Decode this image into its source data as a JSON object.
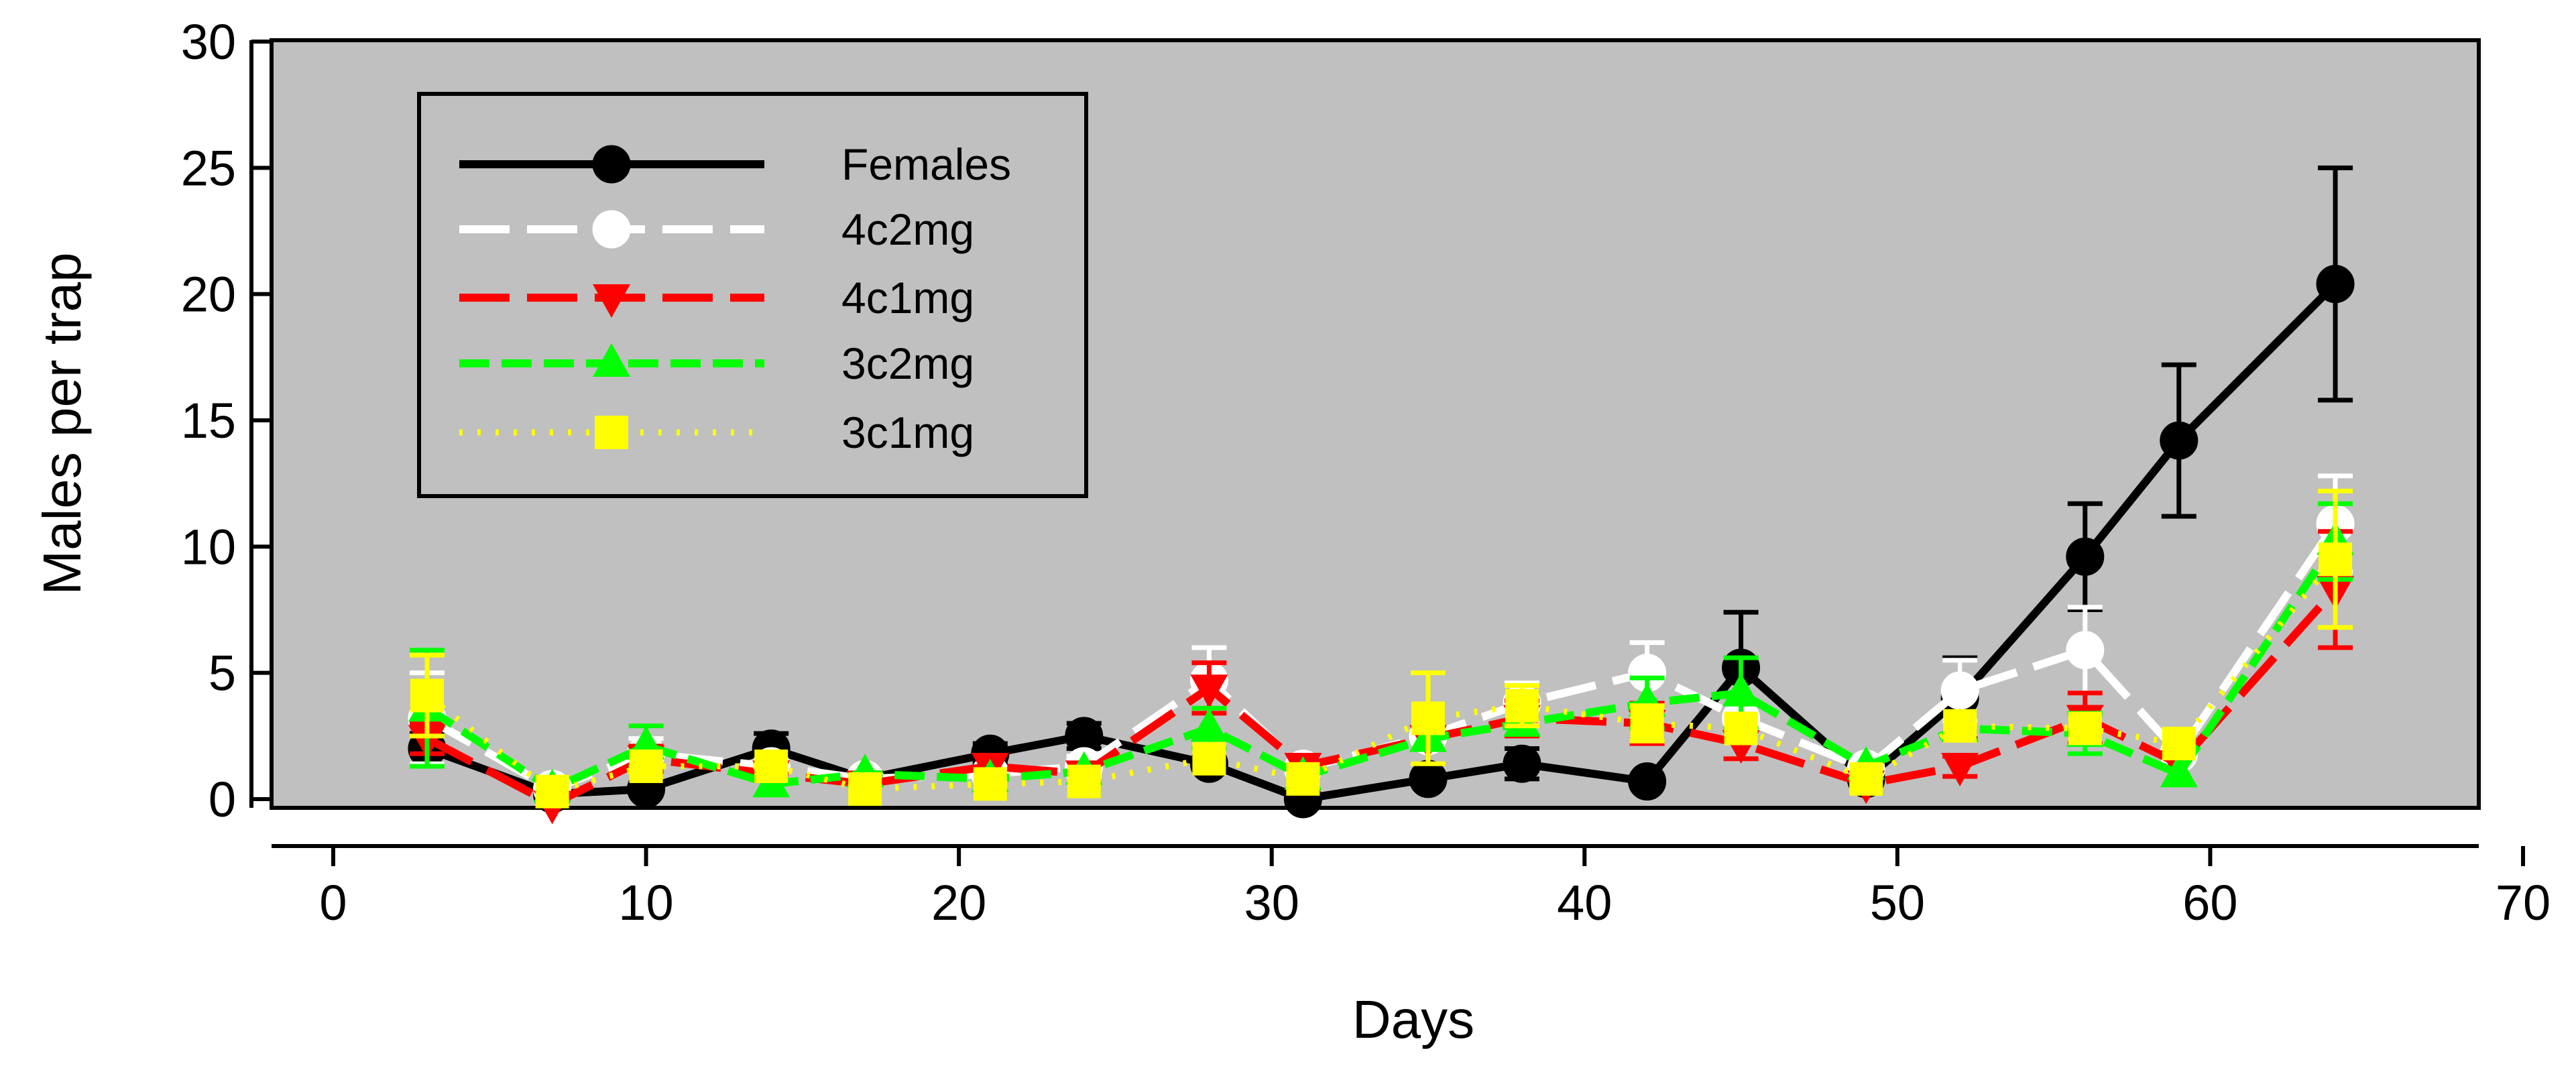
{
  "colors": {
    "plot_background": "#c0c0c0",
    "females": "#000000",
    "4c2mg": "#ffffff",
    "4c1mg": "#ff0000",
    "3c2mg": "#00ff00",
    "3c1mg": "#ffff00"
  },
  "chart_data": {
    "type": "line",
    "title": "",
    "xlabel": "Days",
    "ylabel": "Males per trap",
    "xlim": [
      0,
      70
    ],
    "ylim": [
      0,
      30
    ],
    "xticks": [
      "0",
      "10",
      "20",
      "30",
      "40",
      "50",
      "60",
      "70"
    ],
    "yticks": [
      "0",
      "5",
      "10",
      "15",
      "20",
      "25",
      "30"
    ],
    "legend_position": "top-left",
    "series": [
      {
        "name": "Females",
        "key": "females",
        "marker": "circle",
        "line": "solid",
        "x": [
          3,
          7,
          10,
          14,
          17,
          21,
          24,
          28,
          31,
          35,
          38,
          42,
          45,
          49,
          52,
          56,
          59,
          64
        ],
        "y": [
          2,
          0.2,
          0.4,
          2,
          0.8,
          1.8,
          2.5,
          1.4,
          0,
          0.8,
          1.4,
          0.7,
          5.2,
          0.8,
          4,
          9.6,
          14.2,
          20.4
        ],
        "err": [
          0.6,
          0,
          0,
          0.6,
          0,
          0.4,
          0.5,
          0,
          0,
          0,
          0.6,
          0,
          2.2,
          0,
          1.6,
          2.1,
          3,
          4.6
        ]
      },
      {
        "name": "4c2mg",
        "key": "4c2mg",
        "marker": "circle-open",
        "line": "dashed",
        "x": [
          3,
          7,
          10,
          14,
          17,
          21,
          24,
          28,
          31,
          35,
          38,
          42,
          45,
          49,
          52,
          56,
          59,
          64
        ],
        "y": [
          3.2,
          0.4,
          1.8,
          1.3,
          0.8,
          1,
          1.3,
          4.7,
          1.2,
          2.5,
          3.8,
          5,
          3.2,
          1.2,
          4.3,
          5.9,
          1.8,
          10.9
        ],
        "err": [
          1.8,
          0,
          0.6,
          0,
          0,
          0,
          0.4,
          1.3,
          0,
          0,
          0.8,
          1.2,
          0,
          0,
          1.2,
          1.7,
          0,
          1.9
        ]
      },
      {
        "name": "4c1mg",
        "key": "4c1mg",
        "marker": "triangle-down",
        "line": "dashed",
        "x": [
          3,
          7,
          10,
          14,
          17,
          21,
          24,
          28,
          31,
          35,
          38,
          42,
          45,
          49,
          52,
          56,
          59,
          64
        ],
        "y": [
          2.4,
          -0.2,
          1.6,
          1,
          0.6,
          1.3,
          1,
          4.4,
          1.3,
          2.4,
          3.2,
          3,
          2.2,
          0.6,
          1.3,
          3.2,
          1.4,
          8.3
        ],
        "err": [
          0.6,
          0,
          0.5,
          0,
          0,
          0,
          0,
          1,
          0,
          0,
          0.7,
          0.8,
          0.6,
          0,
          0.4,
          1,
          0,
          2.3
        ]
      },
      {
        "name": "3c2mg",
        "key": "3c2mg",
        "marker": "triangle-up",
        "line": "short-dashed",
        "x": [
          3,
          7,
          10,
          14,
          17,
          21,
          24,
          28,
          31,
          35,
          38,
          42,
          45,
          49,
          52,
          56,
          59,
          64
        ],
        "y": [
          3.6,
          0.4,
          2.1,
          0.6,
          1,
          0.8,
          1.1,
          2.8,
          0.9,
          2.4,
          3,
          3.8,
          4.2,
          1.3,
          2.8,
          2.6,
          1,
          10.2
        ],
        "err": [
          2.3,
          0,
          0.8,
          0,
          0,
          0,
          0,
          0.8,
          0,
          0,
          0,
          1,
          1.4,
          0,
          0,
          0.8,
          0,
          1.5
        ]
      },
      {
        "name": "3c1mg",
        "key": "3c1mg",
        "marker": "square",
        "line": "dotted",
        "x": [
          3,
          7,
          10,
          14,
          17,
          21,
          24,
          28,
          31,
          35,
          38,
          42,
          45,
          49,
          52,
          56,
          59,
          64
        ],
        "y": [
          4.1,
          0.3,
          1.3,
          1.3,
          0.4,
          0.6,
          0.7,
          1.6,
          0.8,
          3.2,
          3.7,
          3,
          2.8,
          0.8,
          2.9,
          2.8,
          2.2,
          9.5
        ],
        "err": [
          1.6,
          0,
          0,
          0,
          0,
          0,
          0,
          0,
          0,
          1.8,
          0.8,
          0.7,
          0,
          0,
          0,
          0,
          0,
          2.7
        ]
      }
    ]
  }
}
